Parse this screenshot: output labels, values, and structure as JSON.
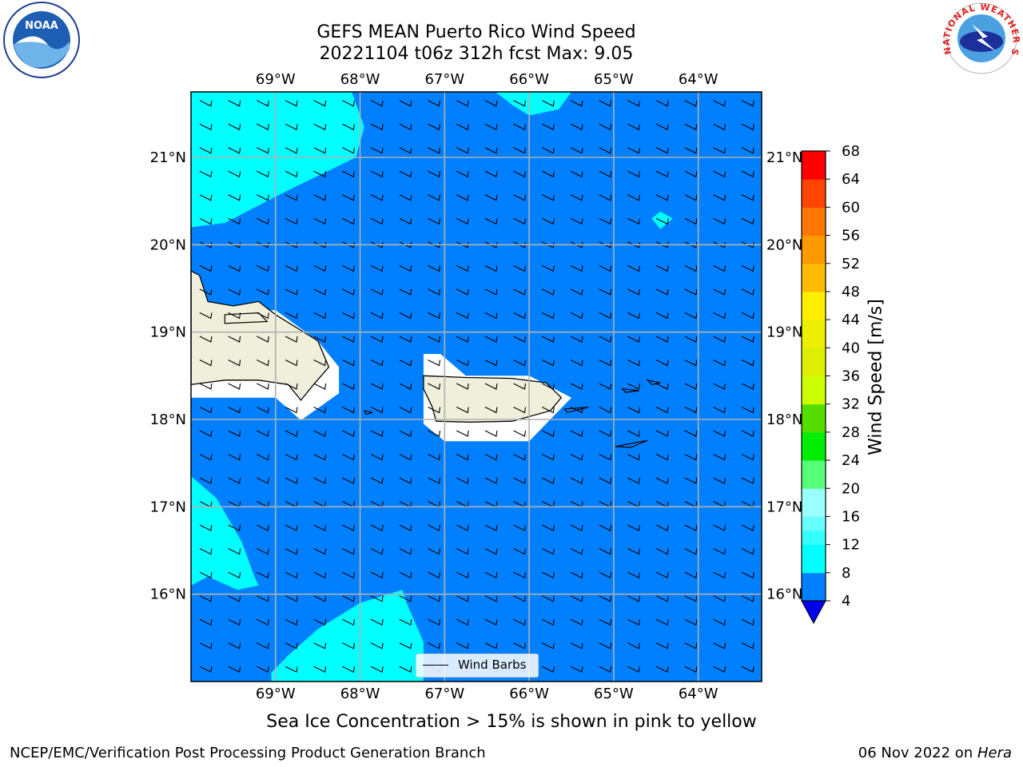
{
  "title": {
    "line1": "GEFS MEAN Puerto Rico Wind Speed",
    "line2": "20221104 t06z 312h fcst   Max: 9.05"
  },
  "logos": {
    "left": {
      "text": "NOAA",
      "icon": "noaa-logo"
    },
    "right": {
      "text": "NATIONAL WEATHER SERVICE",
      "icon": "nws-logo"
    }
  },
  "map": {
    "lon_ticks": [
      "69°W",
      "68°W",
      "67°W",
      "66°W",
      "65°W",
      "64°W"
    ],
    "lat_ticks": [
      "21°N",
      "20°N",
      "19°N",
      "18°N",
      "17°N",
      "16°N"
    ],
    "lon_values": [
      -69,
      -68,
      -67,
      -66,
      -65,
      -64
    ],
    "lat_values": [
      21,
      20,
      19,
      18,
      17,
      16
    ],
    "lon_range": [
      -70,
      -63.25
    ],
    "lat_range": [
      15,
      21.75
    ],
    "ocean_color": "#0080ff",
    "high_wind_color": "#00ffff",
    "land_color": "#efefdc",
    "legend_label": "Wind Barbs"
  },
  "colorbar": {
    "label": "Wind Speed [m/s]",
    "ticks": [
      "68",
      "64",
      "60",
      "56",
      "52",
      "48",
      "44",
      "40",
      "36",
      "32",
      "28",
      "24",
      "20",
      "16",
      "12",
      "8",
      "4"
    ],
    "bands": [
      {
        "range": [
          4,
          8
        ],
        "color": "#0080ff"
      },
      {
        "range": [
          8,
          10
        ],
        "color": "#00ffff"
      },
      {
        "range": [
          10,
          12
        ],
        "color": "#00ffff"
      },
      {
        "range": [
          12,
          14
        ],
        "color": "#33ffff"
      },
      {
        "range": [
          14,
          16
        ],
        "color": "#66ffff"
      },
      {
        "range": [
          16,
          20
        ],
        "color": "#99ffff"
      },
      {
        "range": [
          20,
          24
        ],
        "color": "#55ff77"
      },
      {
        "range": [
          24,
          28
        ],
        "color": "#00ee00"
      },
      {
        "range": [
          28,
          32
        ],
        "color": "#55dd00"
      },
      {
        "range": [
          32,
          36
        ],
        "color": "#ccff00"
      },
      {
        "range": [
          36,
          40
        ],
        "color": "#ddee00"
      },
      {
        "range": [
          40,
          44
        ],
        "color": "#eeee00"
      },
      {
        "range": [
          44,
          48
        ],
        "color": "#ffee00"
      },
      {
        "range": [
          48,
          52
        ],
        "color": "#ffbb00"
      },
      {
        "range": [
          52,
          56
        ],
        "color": "#ff9900"
      },
      {
        "range": [
          56,
          60
        ],
        "color": "#ff7700"
      },
      {
        "range": [
          60,
          64
        ],
        "color": "#ff4400"
      },
      {
        "range": [
          64,
          68
        ],
        "color": "#ff0000"
      }
    ],
    "under_color": "#0000ee"
  },
  "ice_note": "Sea Ice Concentration > 15% is shown in pink to yellow",
  "footer": {
    "left": "NCEP/EMC/Verification Post Processing Product Generation Branch",
    "right_prefix": "06 Nov 2022 on ",
    "right_host": "Hera"
  }
}
